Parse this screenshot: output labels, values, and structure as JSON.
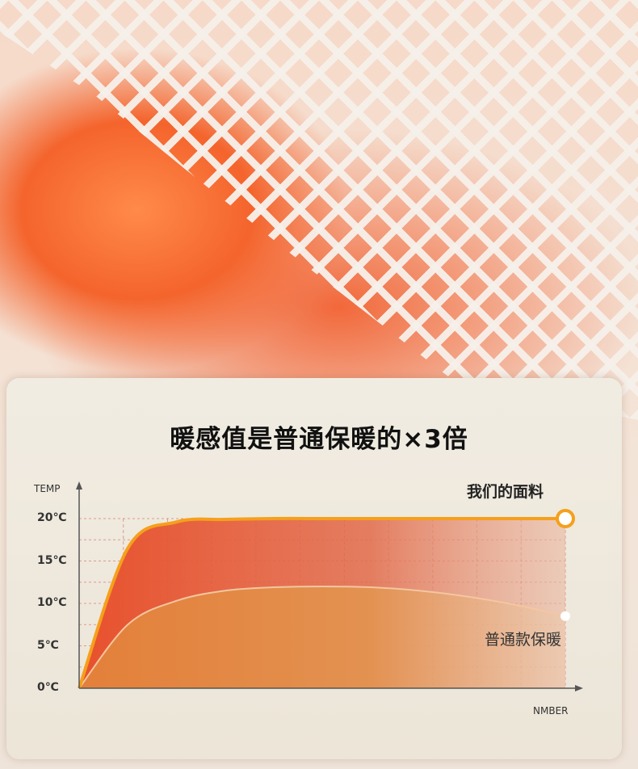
{
  "headline": "暖感值是普通保暖的×3倍",
  "colors": {
    "ours_line": "#f5a01c",
    "ours_fill": "#e8502c",
    "regular_fill": "#e3873a",
    "grid": "#d26a5a"
  },
  "chart_data": {
    "type": "area",
    "title": "暖感值是普通保暖的×3倍",
    "xlabel": "NMBER",
    "ylabel": "TEMP",
    "ylim": [
      0,
      20
    ],
    "yticks": [
      "0℃",
      "5℃",
      "10℃",
      "15℃",
      "20℃"
    ],
    "ytick_values": [
      0,
      5,
      10,
      15,
      20
    ],
    "grid": true,
    "x": [
      0,
      1,
      2,
      3,
      4,
      5,
      6,
      7,
      8,
      9,
      10
    ],
    "series": [
      {
        "name": "我们的面料",
        "values": [
          0,
          16.5,
          19.6,
          19.9,
          20,
          20,
          20,
          20,
          20,
          20,
          20
        ]
      },
      {
        "name": "普通款保暖",
        "values": [
          0,
          7.5,
          10.3,
          11.5,
          11.9,
          12,
          11.9,
          11.5,
          10.8,
          9.8,
          8.5
        ]
      }
    ]
  }
}
